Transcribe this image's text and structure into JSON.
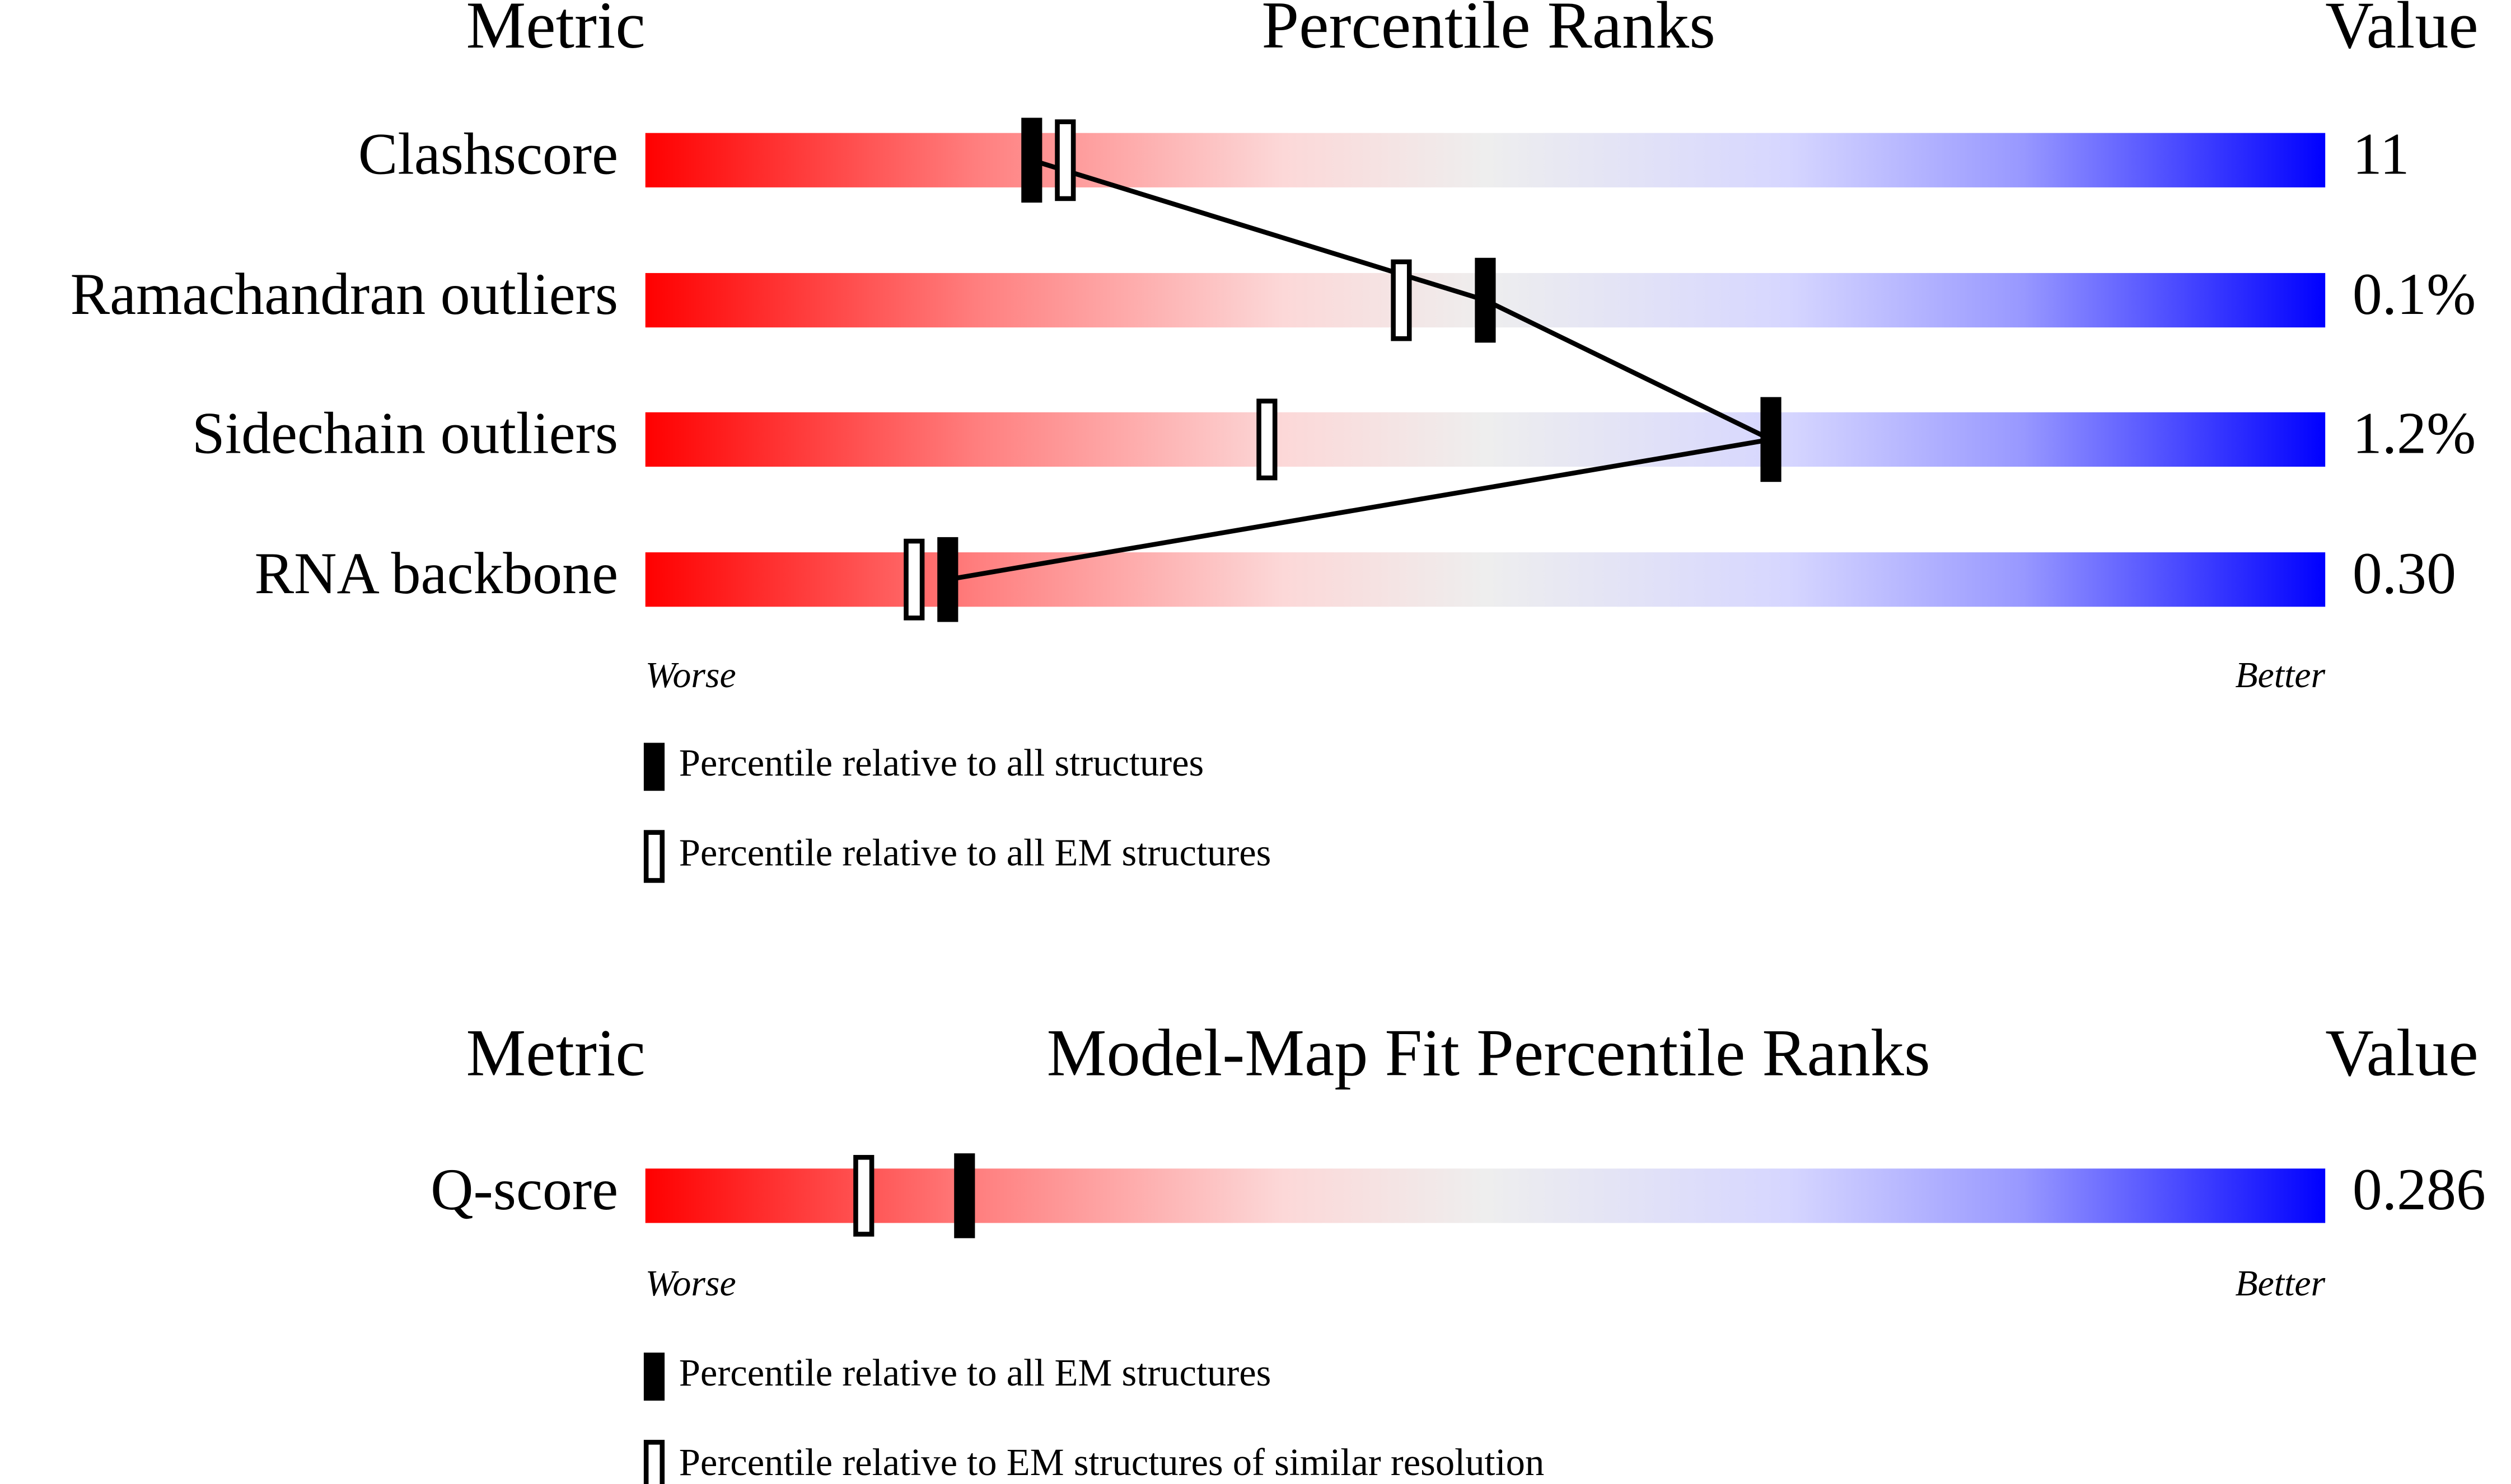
{
  "chart_data": [
    {
      "type": "slider",
      "header": {
        "metric": "Metric",
        "title": "Percentile Ranks",
        "value": "Value"
      },
      "categories": [
        "Clashscore",
        "Ramachandran outliers",
        "Sidechain outliers",
        "RNA backbone"
      ],
      "metric_values": [
        "11",
        "0.1%",
        "1.2%",
        "0.30"
      ],
      "series": [
        {
          "name": "Percentile relative to all structures",
          "color": "#000000",
          "values": [
            23,
            50,
            67,
            18
          ]
        },
        {
          "name": "Percentile relative to all EM structures",
          "color": "#ffffff",
          "values": [
            25,
            45,
            37,
            16
          ]
        }
      ],
      "xlim": [
        0,
        100
      ],
      "scale_labels": {
        "low": "Worse",
        "high": "Better"
      }
    },
    {
      "type": "slider",
      "header": {
        "metric": "Metric",
        "title": "Model-Map Fit Percentile Ranks",
        "value": "Value"
      },
      "categories": [
        "Q-score"
      ],
      "metric_values": [
        "0.286"
      ],
      "series": [
        {
          "name": "Percentile relative to all EM structures",
          "color": "#000000",
          "values": [
            19
          ]
        },
        {
          "name": "Percentile relative to EM structures of similar resolution",
          "color": "#ffffff",
          "values": [
            13
          ]
        }
      ],
      "xlim": [
        0,
        100
      ],
      "scale_labels": {
        "low": "Worse",
        "high": "Better"
      }
    }
  ]
}
